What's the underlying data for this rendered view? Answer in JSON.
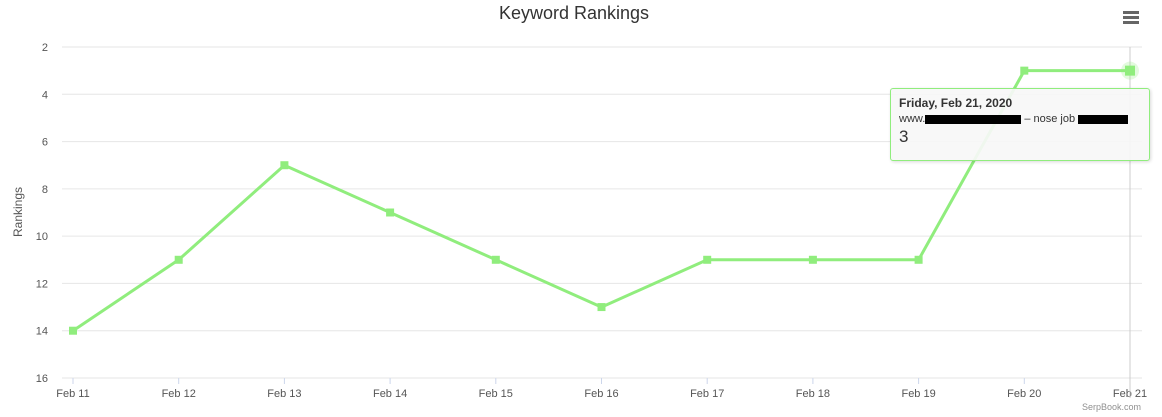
{
  "header": {
    "menu_icon": "hamburger-menu-icon"
  },
  "tooltip": {
    "date": "Friday, Feb 21, 2020",
    "series_prefix": "www.",
    "series_middle": "– nose job",
    "value": "3"
  },
  "credit": "SerpBook.com",
  "colors": {
    "series": "#90ed7d",
    "grid": "#e6e6e6",
    "crosshair": "#cccccc",
    "redaction": "#000000"
  },
  "chart_data": {
    "type": "line",
    "title": "Keyword Rankings",
    "ylabel": "Rankings",
    "xlabel": "",
    "categories": [
      "Feb 11",
      "Feb 12",
      "Feb 13",
      "Feb 14",
      "Feb 15",
      "Feb 16",
      "Feb 17",
      "Feb 18",
      "Feb 19",
      "Feb 20",
      "Feb 21"
    ],
    "series": [
      {
        "values": [
          14,
          11,
          7,
          9,
          11,
          13,
          11,
          11,
          11,
          3,
          3
        ]
      }
    ],
    "ylim": [
      2,
      16
    ],
    "y_reversed": true,
    "yticks": [
      2,
      4,
      6,
      8,
      10,
      12,
      14,
      16
    ],
    "grid": true,
    "hovered_index": 10
  }
}
